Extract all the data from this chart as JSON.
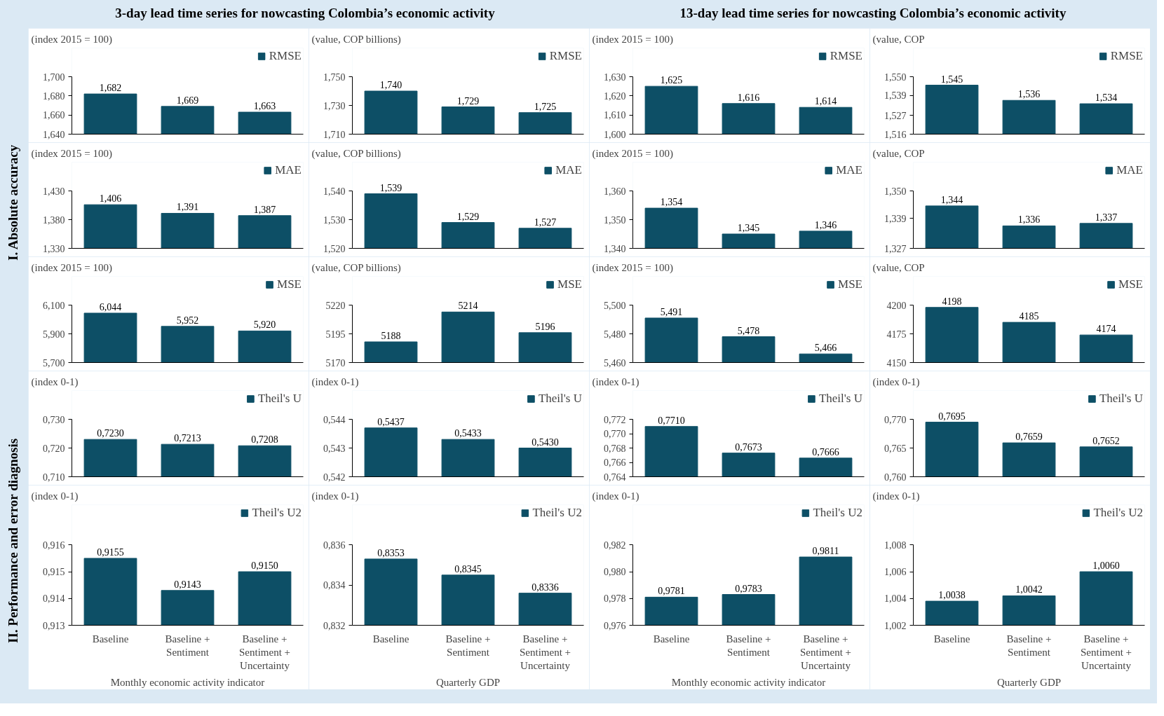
{
  "chart_data": [
    {
      "type": "bar",
      "title": "3-day lead time series for nowcasting Colombia’s economic activity",
      "annotations": [
        "I. Absolute accuracy"
      ],
      "subtitle": "(index 2015 = 100)",
      "categories": [
        null,
        null,
        null
      ],
      "series": [
        {
          "name": "RMSE",
          "color": "#0d4f66",
          "values": [
            1.682,
            1.669,
            1.663
          ]
        }
      ],
      "value_labels": [
        "1,682",
        "1,669",
        "1,663"
      ],
      "ylim": [
        1.64,
        1.7
      ],
      "yticks": [
        {
          "value": 1.64,
          "label": "1,640"
        },
        {
          "value": 1.66,
          "label": "1,660"
        },
        {
          "value": 1.68,
          "label": "1,680"
        },
        {
          "value": 1.7,
          "label": "1,700"
        }
      ],
      "legend": "top right",
      "tick_labels": "y"
    },
    {
      "type": "bar",
      "subtitle": "(value, COP billions)",
      "categories": [
        null,
        null,
        null
      ],
      "series": [
        {
          "name": "RMSE",
          "color": "#0d4f66",
          "values": [
            1.74,
            1.729,
            1.725
          ]
        }
      ],
      "value_labels": [
        "1,740",
        "1,729",
        "1,725"
      ],
      "ylim": [
        1.71,
        1.75
      ],
      "yticks": [
        {
          "value": 1.71,
          "label": "1,710"
        },
        {
          "value": 1.73,
          "label": "1,730"
        },
        {
          "value": 1.75,
          "label": "1,750"
        }
      ],
      "legend": "top right",
      "tick_labels": "y"
    },
    {
      "type": "bar",
      "title": "13-day lead time series for nowcasting Colombia’s economic activity",
      "subtitle": "(index 2015 = 100)",
      "categories": [
        null,
        null,
        null
      ],
      "series": [
        {
          "name": "RMSE",
          "color": "#0d4f66",
          "values": [
            1.625,
            1.616,
            1.614
          ]
        }
      ],
      "value_labels": [
        "1,625",
        "1,616",
        "1,614"
      ],
      "ylim": [
        1.6,
        1.63
      ],
      "yticks": [
        {
          "value": 1.6,
          "label": "1,600"
        },
        {
          "value": 1.61,
          "label": "1,610"
        },
        {
          "value": 1.62,
          "label": "1,620"
        },
        {
          "value": 1.63,
          "label": "1,630"
        }
      ],
      "legend": "top right",
      "tick_labels": "y"
    },
    {
      "type": "bar",
      "subtitle": "(value, COP",
      "categories": [
        null,
        null,
        null
      ],
      "series": [
        {
          "name": "RMSE",
          "color": "#0d4f66",
          "values": [
            1.545,
            1.536,
            1.534
          ]
        }
      ],
      "value_labels": [
        "1,545",
        "1,536",
        "1,534"
      ],
      "ylim": [
        1.516,
        1.55
      ],
      "yticks": [
        {
          "value": 1.516,
          "label": "1,516"
        },
        {
          "value": 1.527,
          "label": "1,527"
        },
        {
          "value": 1.539,
          "label": "1,539"
        },
        {
          "value": 1.55,
          "label": "1,550"
        }
      ],
      "legend": "top right",
      "tick_labels": "y"
    },
    {
      "type": "bar",
      "subtitle": "(index 2015 = 100)",
      "categories": [
        null,
        null,
        null
      ],
      "series": [
        {
          "name": "MAE",
          "color": "#0d4f66",
          "values": [
            1.406,
            1.391,
            1.387
          ]
        }
      ],
      "value_labels": [
        "1,406",
        "1,391",
        "1,387"
      ],
      "ylim": [
        1.33,
        1.43
      ],
      "yticks": [
        {
          "value": 1.33,
          "label": "1,330"
        },
        {
          "value": 1.38,
          "label": "1,380"
        },
        {
          "value": 1.43,
          "label": "1,430"
        }
      ],
      "legend": "top right",
      "tick_labels": "y"
    },
    {
      "type": "bar",
      "subtitle": "(value, COP billions)",
      "categories": [
        null,
        null,
        null
      ],
      "series": [
        {
          "name": "MAE",
          "color": "#0d4f66",
          "values": [
            1.539,
            1.529,
            1.527
          ]
        }
      ],
      "value_labels": [
        "1,539",
        "1,529",
        "1,527"
      ],
      "ylim": [
        1.52,
        1.54
      ],
      "yticks": [
        {
          "value": 1.52,
          "label": "1,520"
        },
        {
          "value": 1.53,
          "label": "1,530"
        },
        {
          "value": 1.54,
          "label": "1,540"
        }
      ],
      "legend": "top right",
      "tick_labels": "y"
    },
    {
      "type": "bar",
      "subtitle": "(index 2015 = 100)",
      "categories": [
        null,
        null,
        null
      ],
      "series": [
        {
          "name": "MAE",
          "color": "#0d4f66",
          "values": [
            1.354,
            1.345,
            1.346
          ]
        }
      ],
      "value_labels": [
        "1,354",
        "1,345",
        "1,346"
      ],
      "ylim": [
        1.34,
        1.36
      ],
      "yticks": [
        {
          "value": 1.34,
          "label": "1,340"
        },
        {
          "value": 1.35,
          "label": "1,350"
        },
        {
          "value": 1.36,
          "label": "1,360"
        }
      ],
      "legend": "top right",
      "tick_labels": "y"
    },
    {
      "type": "bar",
      "subtitle": "(value, COP",
      "categories": [
        null,
        null,
        null
      ],
      "series": [
        {
          "name": "MAE",
          "color": "#0d4f66",
          "values": [
            1.344,
            1.336,
            1.337
          ]
        }
      ],
      "value_labels": [
        "1,344",
        "1,336",
        "1,337"
      ],
      "ylim": [
        1.327,
        1.35
      ],
      "yticks": [
        {
          "value": 1.327,
          "label": "1,327"
        },
        {
          "value": 1.339,
          "label": "1,339"
        },
        {
          "value": 1.35,
          "label": "1,350"
        }
      ],
      "legend": "top right",
      "tick_labels": "y"
    },
    {
      "type": "bar",
      "subtitle": "(index 2015 = 100)",
      "categories": [
        null,
        null,
        null
      ],
      "series": [
        {
          "name": "MSE",
          "color": "#0d4f66",
          "values": [
            6.044,
            5.952,
            5.92
          ]
        }
      ],
      "value_labels": [
        "6,044",
        "5,952",
        "5,920"
      ],
      "ylim": [
        5.7,
        6.1
      ],
      "yticks": [
        {
          "value": 5.7,
          "label": "5,700"
        },
        {
          "value": 5.9,
          "label": "5,900"
        },
        {
          "value": 6.1,
          "label": "6,100"
        }
      ],
      "legend": "top right",
      "tick_labels": "y"
    },
    {
      "type": "bar",
      "subtitle": "(value, COP billions)",
      "categories": [
        null,
        null,
        null
      ],
      "series": [
        {
          "name": "MSE",
          "color": "#0d4f66",
          "values": [
            5188,
            5214,
            5196
          ]
        }
      ],
      "data_labels": true,
      "ylim": [
        5170,
        5220
      ],
      "yticks": [
        5170,
        5195,
        5220
      ],
      "legend": "top right",
      "tick_labels": "y"
    },
    {
      "type": "bar",
      "subtitle": "(index 2015 = 100)",
      "categories": [
        null,
        null,
        null
      ],
      "series": [
        {
          "name": "MSE",
          "color": "#0d4f66",
          "values": [
            5.491,
            5.478,
            5.466
          ]
        }
      ],
      "value_labels": [
        "5,491",
        "5,478",
        "5,466"
      ],
      "ylim": [
        5.46,
        5.5
      ],
      "yticks": [
        {
          "value": 5.46,
          "label": "5,460"
        },
        {
          "value": 5.48,
          "label": "5,480"
        },
        {
          "value": 5.5,
          "label": "5,500"
        }
      ],
      "legend": "top right",
      "tick_labels": "y"
    },
    {
      "type": "bar",
      "subtitle": "(value, COP",
      "categories": [
        null,
        null,
        null
      ],
      "series": [
        {
          "name": "MSE",
          "color": "#0d4f66",
          "values": [
            4198,
            4185,
            4174
          ]
        }
      ],
      "data_labels": true,
      "ylim": [
        4150,
        4200
      ],
      "yticks": [
        4150,
        4175,
        4200
      ],
      "legend": "top right",
      "tick_labels": "y"
    },
    {
      "type": "bar",
      "annotations": [
        "II. Performance and error diagnosis"
      ],
      "subtitle": "(index 0-1)",
      "categories": [
        null,
        null,
        null
      ],
      "series": [
        {
          "name": "Theil's U",
          "color": "#0d4f66",
          "values": [
            0.723,
            0.7213,
            0.7208
          ]
        }
      ],
      "value_labels": [
        "0,7230",
        "0,7213",
        "0,7208"
      ],
      "ylim": [
        0.71,
        0.73
      ],
      "yticks": [
        {
          "value": 0.71,
          "label": "0,710"
        },
        {
          "value": 0.72,
          "label": "0,720"
        },
        {
          "value": 0.73,
          "label": "0,730"
        }
      ],
      "legend": "top right",
      "tick_labels": "y"
    },
    {
      "type": "bar",
      "subtitle": "(index 0-1)",
      "categories": [
        null,
        null,
        null
      ],
      "series": [
        {
          "name": "Theil's U",
          "color": "#0d4f66",
          "values": [
            0.5437,
            0.5433,
            0.543
          ]
        }
      ],
      "value_labels": [
        "0,5437",
        "0,5433",
        "0,5430"
      ],
      "ylim": [
        0.542,
        0.544
      ],
      "yticks": [
        {
          "value": 0.542,
          "label": "0,542"
        },
        {
          "value": 0.543,
          "label": "0,543"
        },
        {
          "value": 0.544,
          "label": "0,544"
        }
      ],
      "legend": "top right",
      "tick_labels": "y"
    },
    {
      "type": "bar",
      "subtitle": "(index 0-1)",
      "categories": [
        null,
        null,
        null
      ],
      "series": [
        {
          "name": "Theil's U",
          "color": "#0d4f66",
          "values": [
            0.771,
            0.7673,
            0.7666
          ]
        }
      ],
      "value_labels": [
        "0,7710",
        "0,7673",
        "0,7666"
      ],
      "ylim": [
        0.764,
        0.772
      ],
      "yticks": [
        {
          "value": 0.764,
          "label": "0,764"
        },
        {
          "value": 0.766,
          "label": "0,766"
        },
        {
          "value": 0.768,
          "label": "0,768"
        },
        {
          "value": 0.77,
          "label": "0,770"
        },
        {
          "value": 0.772,
          "label": "0,772"
        }
      ],
      "legend": "top right",
      "tick_labels": "y"
    },
    {
      "type": "bar",
      "subtitle": "(index 0-1)",
      "categories": [
        null,
        null,
        null
      ],
      "series": [
        {
          "name": "Theil's U",
          "color": "#0d4f66",
          "values": [
            0.7695,
            0.7659,
            0.7652
          ]
        }
      ],
      "value_labels": [
        "0,7695",
        "0,7659",
        "0,7652"
      ],
      "ylim": [
        0.76,
        0.77
      ],
      "yticks": [
        {
          "value": 0.76,
          "label": "0,760"
        },
        {
          "value": 0.765,
          "label": "0,765"
        },
        {
          "value": 0.77,
          "label": "0,770"
        }
      ],
      "legend": "top right",
      "tick_labels": "y"
    },
    {
      "type": "bar",
      "subtitle": "(index 0-1)",
      "xlabel": "Monthly economic activity indicator",
      "categories": [
        "Baseline",
        "Baseline + Sentiment",
        "Baseline + Sentiment + Uncertainty"
      ],
      "series": [
        {
          "name": "Theil's U2",
          "color": "#0d4f66",
          "values": [
            0.9155,
            0.9143,
            0.915
          ]
        }
      ],
      "value_labels": [
        "0,9155",
        "0,9143",
        "0,9150"
      ],
      "ylim": [
        0.913,
        0.916
      ],
      "yticks": [
        {
          "value": 0.913,
          "label": "0,913"
        },
        {
          "value": 0.914,
          "label": "0,914"
        },
        {
          "value": 0.915,
          "label": "0,915"
        },
        {
          "value": 0.916,
          "label": "0,916"
        }
      ],
      "legend": "top right"
    },
    {
      "type": "bar",
      "subtitle": "(index 0-1)",
      "xlabel": "Quarterly GDP",
      "categories": [
        "Baseline",
        "Baseline + Sentiment",
        "Baseline + Sentiment + Uncertainty"
      ],
      "series": [
        {
          "name": "Theil's U2",
          "color": "#0d4f66",
          "values": [
            0.8353,
            0.8345,
            0.8336
          ]
        }
      ],
      "value_labels": [
        "0,8353",
        "0,8345",
        "0,8336"
      ],
      "ylim": [
        0.832,
        0.836
      ],
      "yticks": [
        {
          "value": 0.832,
          "label": "0,832"
        },
        {
          "value": 0.834,
          "label": "0,834"
        },
        {
          "value": 0.836,
          "label": "0,836"
        }
      ],
      "legend": "top right"
    },
    {
      "type": "bar",
      "subtitle": "(index 0-1)",
      "xlabel": "Monthly economic activity indicator",
      "categories": [
        "Baseline",
        "Baseline + Sentiment",
        "Baseline + Sentiment + Uncertainty"
      ],
      "series": [
        {
          "name": "Theil's U2",
          "color": "#0d4f66",
          "values": [
            0.9781,
            0.9783,
            0.9811
          ]
        }
      ],
      "value_labels": [
        "0,9781",
        "0,9783",
        "0,9811"
      ],
      "ylim": [
        0.976,
        0.982
      ],
      "yticks": [
        {
          "value": 0.976,
          "label": "0,976"
        },
        {
          "value": 0.978,
          "label": "0,978"
        },
        {
          "value": 0.98,
          "label": "0,980"
        },
        {
          "value": 0.982,
          "label": "0,982"
        }
      ],
      "legend": "top right"
    },
    {
      "type": "bar",
      "subtitle": "(index 0-1)",
      "xlabel": "Quarterly GDP",
      "categories": [
        "Baseline",
        "Baseline + Sentiment",
        "Baseline + Sentiment + Uncertainty"
      ],
      "series": [
        {
          "name": "Theil's U2",
          "color": "#0d4f66",
          "values": [
            1.0038,
            1.0042,
            1.006
          ]
        }
      ],
      "value_labels": [
        "1,0038",
        "1,0042",
        "1,0060"
      ],
      "ylim": [
        1.002,
        1.008
      ],
      "yticks": [
        {
          "value": 1.002,
          "label": "1,002"
        },
        {
          "value": 1.004,
          "label": "1,004"
        },
        {
          "value": 1.006,
          "label": "1,006"
        },
        {
          "value": 1.008,
          "label": "1,008"
        }
      ],
      "legend": "top right"
    }
  ]
}
